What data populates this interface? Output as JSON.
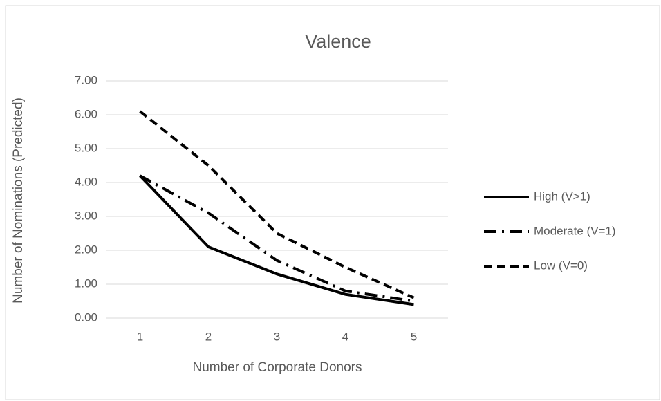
{
  "chart_data": {
    "type": "line",
    "title": "Valence",
    "x_label": "Number of Corporate Donors",
    "y_label": "Number of Nominations (Predicted)",
    "categories": [
      "1",
      "2",
      "3",
      "4",
      "5"
    ],
    "series": [
      {
        "name": "High (V>1)",
        "color": "#000000",
        "dash": "solid",
        "values": [
          4.2,
          2.1,
          1.3,
          0.7,
          0.4
        ]
      },
      {
        "name": "Moderate (V=1)",
        "color": "#000000",
        "dash": "dashdot",
        "values": [
          4.2,
          3.1,
          1.7,
          0.8,
          0.5
        ]
      },
      {
        "name": "Low (V=0)",
        "color": "#000000",
        "dash": "dash",
        "values": [
          6.1,
          4.5,
          2.5,
          1.5,
          0.6
        ]
      }
    ],
    "ylim": [
      0,
      7
    ],
    "yticks": [
      {
        "value": 0,
        "label": "0.00"
      },
      {
        "value": 1,
        "label": "1.00"
      },
      {
        "value": 2,
        "label": "2.00"
      },
      {
        "value": 3,
        "label": "3.00"
      },
      {
        "value": 4,
        "label": "4.00"
      },
      {
        "value": 5,
        "label": "5.00"
      },
      {
        "value": 6,
        "label": "6.00"
      },
      {
        "value": 7,
        "label": "7.00"
      }
    ],
    "grid": true,
    "legend": "right"
  }
}
